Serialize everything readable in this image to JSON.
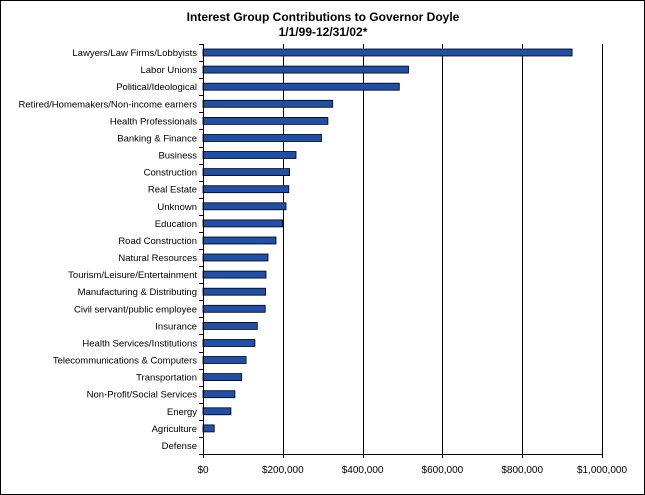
{
  "chart_data": {
    "type": "bar",
    "orientation": "horizontal",
    "title": "Interest Group Contributions to Governor Doyle",
    "subtitle": "1/1/99-12/31/02*",
    "categories": [
      "Lawyers/Law Firms/Lobbyists",
      "Labor Unions",
      "Political/Ideological",
      "Retired/Homemakers/Non-income earners",
      "Health Professionals",
      "Banking & Finance",
      "Business",
      "Construction",
      "Real Estate",
      "Unknown",
      "Education",
      "Road Construction",
      "Natural Resources",
      "Tourism/Leisure/Entertainment",
      "Manufacturing & Distributing",
      "Civil servant/public employee",
      "Insurance",
      "Health Services/Institutions",
      "Telecommunications & Computers",
      "Transportation",
      "Non-Profit/Social Services",
      "Energy",
      "Agriculture",
      "Defense"
    ],
    "values": [
      925000,
      515000,
      492000,
      325000,
      313000,
      297000,
      233000,
      217000,
      215000,
      208000,
      200000,
      183000,
      163000,
      158000,
      157000,
      156000,
      136000,
      130000,
      108000,
      97000,
      80000,
      70000,
      28000,
      0
    ],
    "xlim": [
      0,
      1000000
    ],
    "xticks": [
      0,
      200000,
      400000,
      600000,
      800000,
      1000000
    ],
    "xtick_labels": [
      "$0",
      "$200,000",
      "$400,000",
      "$600,000",
      "$800,000",
      "$1,000,000"
    ],
    "xlabel": "",
    "ylabel": "",
    "gridlines": "vertical",
    "legend": "none",
    "bar_color": "#1f4fa8",
    "bar_outline": "#000000",
    "gridline_color": "#000000"
  }
}
